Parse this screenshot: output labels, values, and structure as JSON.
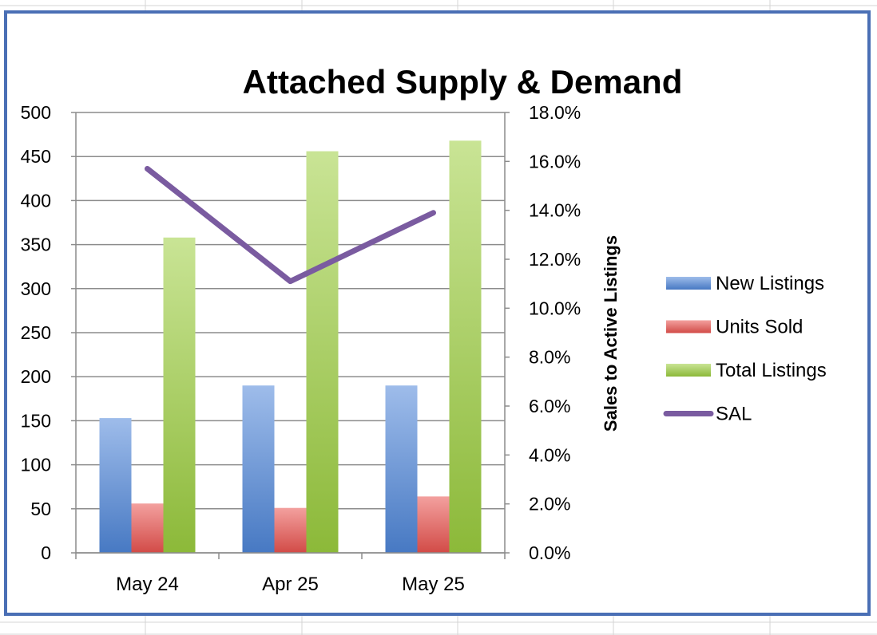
{
  "chart_data": {
    "type": "bar",
    "title": "Attached Supply & Demand",
    "categories": [
      "May 24",
      "Apr 25",
      "May 25"
    ],
    "series": [
      {
        "name": "New Listings",
        "type": "bar",
        "axis": "left",
        "values": [
          153,
          190,
          190
        ],
        "color": "#4f86d9"
      },
      {
        "name": "Units Sold",
        "type": "bar",
        "axis": "left",
        "values": [
          56,
          51,
          64
        ],
        "color": "#e9534f"
      },
      {
        "name": "Total Listings",
        "type": "bar",
        "axis": "left",
        "values": [
          358,
          456,
          468
        ],
        "color": "#9ccd3f"
      },
      {
        "name": "SAL",
        "type": "line",
        "axis": "right",
        "values": [
          0.157,
          0.111,
          0.139
        ],
        "color": "#7a5ba0"
      }
    ],
    "y_left": {
      "label": "",
      "ylim": [
        0,
        500
      ],
      "ticks": [
        "500",
        "450",
        "400",
        "350",
        "300",
        "250",
        "200",
        "150",
        "100",
        "50",
        "0"
      ]
    },
    "y_right": {
      "label": "Sales to Active Listings",
      "ylim": [
        0,
        0.18
      ],
      "ticks": [
        "18.0%",
        "16.0%",
        "14.0%",
        "12.0%",
        "10.0%",
        "8.0%",
        "6.0%",
        "4.0%",
        "2.0%",
        "0.0%"
      ]
    },
    "grid": true,
    "legend_position": "right"
  }
}
